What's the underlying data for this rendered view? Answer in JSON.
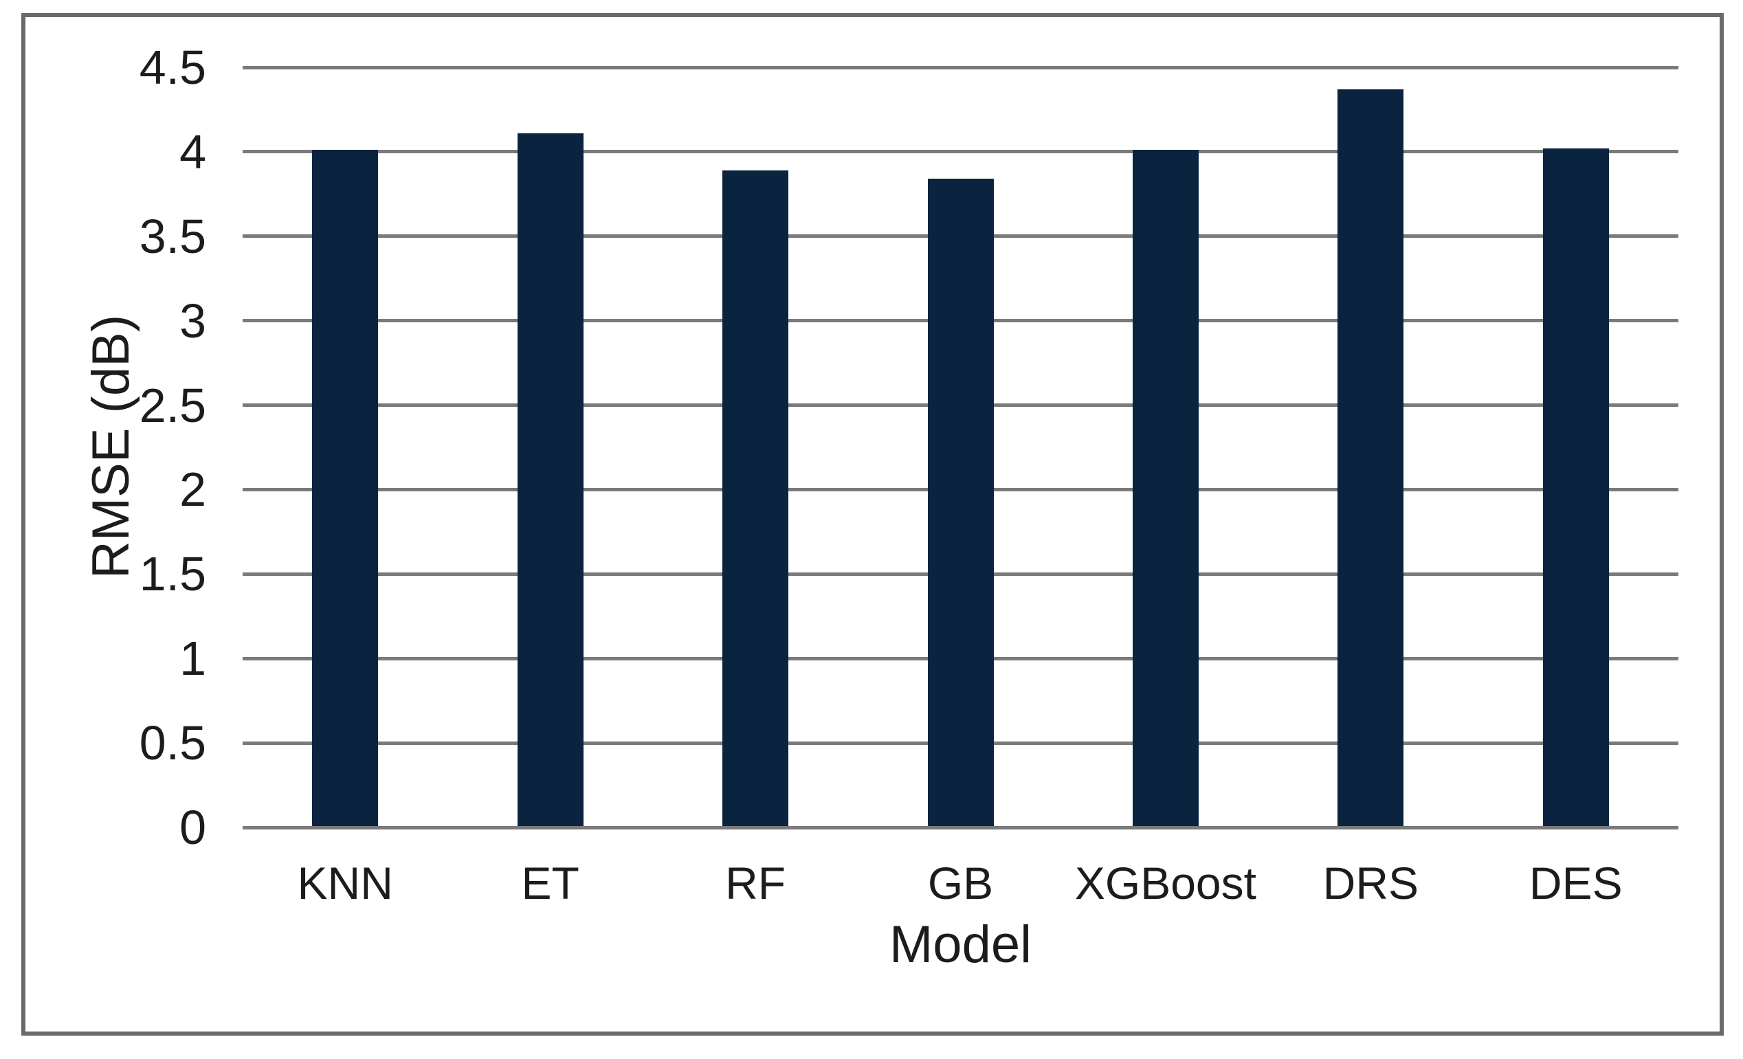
{
  "figure": {
    "background": "#ffffff",
    "border_color": "#6a6a6a"
  },
  "chart_data": {
    "type": "bar",
    "categories": [
      "KNN",
      "ET",
      "RF",
      "GB",
      "XGBoost",
      "DRS",
      "DES"
    ],
    "values": [
      4.01,
      4.11,
      3.89,
      3.84,
      4.01,
      4.37,
      4.02
    ],
    "title": "",
    "xlabel": "Model",
    "ylabel": "RMSE (dB)",
    "ylim": [
      0,
      4.5
    ],
    "yticks": [
      4.5,
      4,
      3.5,
      3,
      2.5,
      2,
      1.5,
      1,
      0.5,
      0
    ],
    "ytick_labels": [
      "4.5",
      "4",
      "3.5",
      "3",
      "2.5",
      "2",
      "1.5",
      "1",
      "0.5",
      "0"
    ],
    "grid": true,
    "legend": false,
    "bar_color": "#0a2440",
    "gridline_color": "#7a7a7a",
    "text_color": "#1c1c1c"
  }
}
